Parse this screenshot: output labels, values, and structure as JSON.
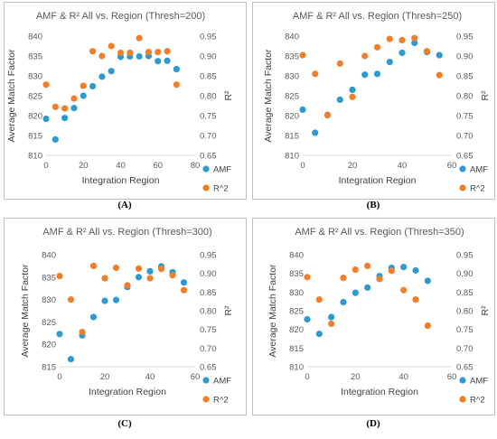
{
  "colors": {
    "amf": "#2e9ad0",
    "r2": "#f07f2a",
    "frame": "#bfbfbf",
    "text": "#595959"
  },
  "chart_data": [
    {
      "type": "scatter",
      "title": "AMF & R² All vs. Region (Thresh=200)",
      "caption": "(A)",
      "xlabel": "Integration Region",
      "ylabel": "Average Match Factor",
      "y2label": "R²",
      "xlim": [
        0,
        80
      ],
      "xticks": [
        0,
        20,
        40,
        60,
        80
      ],
      "ylim": [
        810,
        840
      ],
      "yticks": [
        810,
        815,
        820,
        825,
        830,
        835,
        840
      ],
      "y2lim": [
        0.65,
        0.95
      ],
      "y2ticks": [
        0.65,
        0.7,
        0.75,
        0.8,
        0.85,
        0.9,
        0.95
      ],
      "legend": "bottom-right",
      "series": [
        {
          "name": "AMF",
          "axis": "left",
          "x": [
            0,
            5,
            10,
            15,
            20,
            25,
            30,
            35,
            40,
            45,
            50,
            55,
            60,
            65,
            70
          ],
          "values": [
            819.2,
            814.0,
            819.4,
            821.9,
            825.0,
            827.4,
            829.8,
            831.2,
            834.8,
            834.9,
            834.9,
            835.0,
            833.7,
            833.8,
            831.7
          ]
        },
        {
          "name": "R^2",
          "axis": "right",
          "x": [
            0,
            5,
            10,
            15,
            20,
            25,
            30,
            35,
            40,
            45,
            50,
            55,
            60,
            65,
            70
          ],
          "values": [
            0.828,
            0.772,
            0.768,
            0.793,
            0.825,
            0.912,
            0.9,
            0.925,
            0.908,
            0.908,
            0.945,
            0.91,
            0.91,
            0.912,
            0.828
          ]
        }
      ]
    },
    {
      "type": "scatter",
      "title": "AMF & R² All vs. Region (Thresh=250)",
      "caption": "(B)",
      "xlabel": "Integration Region",
      "ylabel": "Average Match Factor",
      "y2label": "R²",
      "xlim": [
        0,
        60
      ],
      "xticks": [
        0,
        20,
        40,
        60
      ],
      "ylim": [
        810,
        840
      ],
      "yticks": [
        810,
        815,
        820,
        825,
        830,
        835,
        840
      ],
      "y2lim": [
        0.65,
        0.95
      ],
      "y2ticks": [
        0.65,
        0.7,
        0.75,
        0.8,
        0.85,
        0.9,
        0.95
      ],
      "legend": "bottom-right",
      "series": [
        {
          "name": "AMF",
          "axis": "left",
          "x": [
            0,
            5,
            10,
            15,
            20,
            25,
            30,
            35,
            40,
            45,
            50,
            55
          ],
          "values": [
            821.5,
            815.7,
            820.1,
            824.0,
            826.5,
            830.3,
            830.5,
            833.5,
            835.8,
            838.3,
            836.0,
            835.2
          ]
        },
        {
          "name": "R^2",
          "axis": "right",
          "x": [
            0,
            5,
            10,
            15,
            20,
            25,
            30,
            35,
            40,
            45,
            50,
            55
          ],
          "values": [
            0.902,
            0.855,
            0.752,
            0.881,
            0.797,
            0.9,
            0.922,
            0.943,
            0.94,
            0.945,
            0.912,
            0.852
          ]
        }
      ]
    },
    {
      "type": "scatter",
      "title": "AMF & R² All vs. Region (Thresh=300)",
      "caption": "(C)",
      "xlabel": "Integration Region",
      "ylabel": "Average Match Factor",
      "y2label": "R²",
      "xlim": [
        0,
        60
      ],
      "xticks": [
        0,
        20,
        40,
        60
      ],
      "ylim": [
        815,
        840
      ],
      "yticks": [
        815,
        820,
        825,
        830,
        835,
        840
      ],
      "y2lim": [
        0.65,
        0.95
      ],
      "y2ticks": [
        0.65,
        0.7,
        0.75,
        0.8,
        0.85,
        0.9,
        0.95
      ],
      "legend": "bottom-right",
      "series": [
        {
          "name": "AMF",
          "axis": "left",
          "x": [
            0,
            5,
            10,
            15,
            20,
            25,
            30,
            35,
            40,
            45,
            50,
            55
          ],
          "values": [
            822.3,
            816.7,
            822.0,
            826.1,
            829.7,
            829.9,
            832.8,
            835.0,
            836.3,
            837.4,
            836.1,
            833.8
          ]
        },
        {
          "name": "R^2",
          "axis": "right",
          "x": [
            0,
            5,
            10,
            15,
            20,
            25,
            30,
            35,
            40,
            45,
            50,
            55
          ],
          "values": [
            0.893,
            0.83,
            0.743,
            0.92,
            0.887,
            0.915,
            0.868,
            0.913,
            0.887,
            0.912,
            0.895,
            0.855
          ]
        }
      ]
    },
    {
      "type": "scatter",
      "title": "AMF & R² All vs. Region (Thresh=350)",
      "caption": "(D)",
      "xlabel": "Integration Region",
      "ylabel": "Average Match Factor",
      "y2label": "R²",
      "xlim": [
        0,
        60
      ],
      "xticks": [
        0,
        20,
        40,
        60
      ],
      "ylim": [
        810,
        840
      ],
      "yticks": [
        810,
        815,
        820,
        825,
        830,
        835,
        840
      ],
      "y2lim": [
        0.65,
        0.95
      ],
      "y2ticks": [
        0.65,
        0.7,
        0.75,
        0.8,
        0.85,
        0.9,
        0.95
      ],
      "legend": "bottom-right",
      "series": [
        {
          "name": "AMF",
          "axis": "left",
          "x": [
            0,
            5,
            10,
            15,
            20,
            25,
            30,
            35,
            40,
            45,
            50
          ],
          "values": [
            822.7,
            818.8,
            823.3,
            827.3,
            829.8,
            831.2,
            834.3,
            836.5,
            836.7,
            835.8,
            833.0
          ]
        },
        {
          "name": "R^2",
          "axis": "right",
          "x": [
            0,
            5,
            10,
            15,
            20,
            25,
            30,
            35,
            40,
            45,
            50
          ],
          "values": [
            0.89,
            0.83,
            0.765,
            0.888,
            0.91,
            0.92,
            0.885,
            0.907,
            0.855,
            0.83,
            0.76
          ]
        }
      ]
    }
  ]
}
